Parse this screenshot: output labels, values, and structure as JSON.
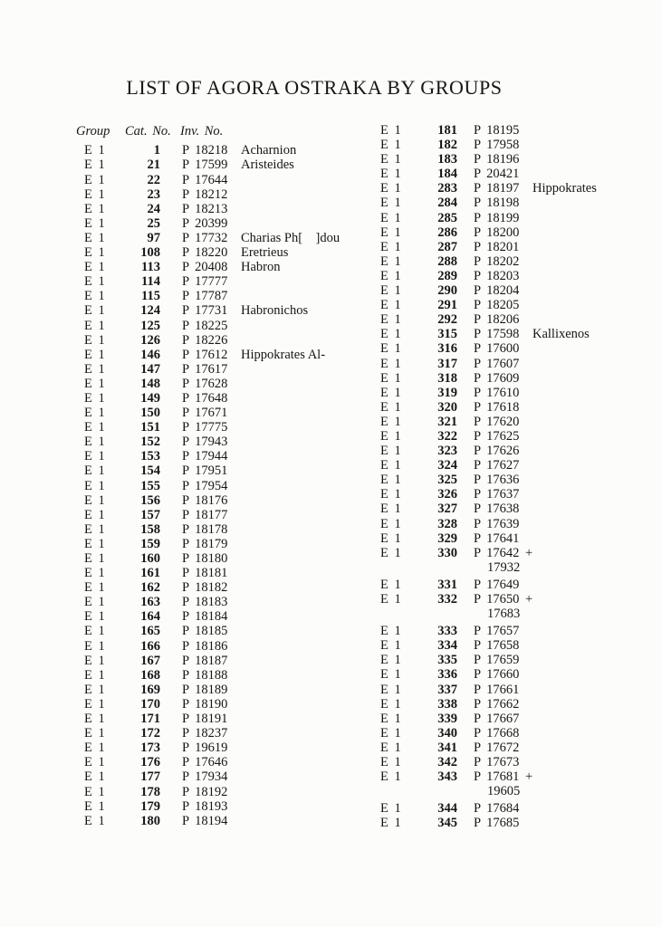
{
  "title": "LIST OF AGORA OSTRAKA BY GROUPS",
  "headers": {
    "group": "Group",
    "cat_no": "Cat. No.",
    "inv_no": "Inv. No."
  },
  "columns": {
    "left": [
      {
        "group": "E 1",
        "cat": "1",
        "inv": "P 18218",
        "name": "Acharnion"
      },
      {
        "group": "E 1",
        "cat": "21",
        "inv": "P 17599",
        "name": "Aristeides"
      },
      {
        "group": "E 1",
        "cat": "22",
        "inv": "P 17644"
      },
      {
        "group": "E 1",
        "cat": "23",
        "inv": "P 18212"
      },
      {
        "group": "E 1",
        "cat": "24",
        "inv": "P 18213"
      },
      {
        "group": "E 1",
        "cat": "25",
        "inv": "P 20399"
      },
      {
        "group": "E 1",
        "cat": "97",
        "inv": "P 17732",
        "name": "Charias Ph[    ]dou"
      },
      {
        "group": "E 1",
        "cat": "108",
        "inv": "P 18220",
        "name": "Eretrieus"
      },
      {
        "group": "E 1",
        "cat": "113",
        "inv": "P 20408",
        "name": "Habron"
      },
      {
        "group": "E 1",
        "cat": "114",
        "inv": "P 17777"
      },
      {
        "group": "E 1",
        "cat": "115",
        "inv": "P 17787"
      },
      {
        "group": "E 1",
        "cat": "124",
        "inv": "P 17731",
        "name": "Habronichos"
      },
      {
        "group": "E 1",
        "cat": "125",
        "inv": "P 18225"
      },
      {
        "group": "E 1",
        "cat": "126",
        "inv": "P 18226"
      },
      {
        "group": "E 1",
        "cat": "146",
        "inv": "P 17612",
        "name": "Hippokrates Al-"
      },
      {
        "group": "E 1",
        "cat": "147",
        "inv": "P 17617"
      },
      {
        "group": "E 1",
        "cat": "148",
        "inv": "P 17628"
      },
      {
        "group": "E 1",
        "cat": "149",
        "inv": "P 17648"
      },
      {
        "group": "E 1",
        "cat": "150",
        "inv": "P 17671"
      },
      {
        "group": "E 1",
        "cat": "151",
        "inv": "P 17775"
      },
      {
        "group": "E 1",
        "cat": "152",
        "inv": "P 17943"
      },
      {
        "group": "E 1",
        "cat": "153",
        "inv": "P 17944"
      },
      {
        "group": "E 1",
        "cat": "154",
        "inv": "P 17951"
      },
      {
        "group": "E 1",
        "cat": "155",
        "inv": "P 17954"
      },
      {
        "group": "E 1",
        "cat": "156",
        "inv": "P 18176"
      },
      {
        "group": "E 1",
        "cat": "157",
        "inv": "P 18177"
      },
      {
        "group": "E 1",
        "cat": "158",
        "inv": "P 18178"
      },
      {
        "group": "E 1",
        "cat": "159",
        "inv": "P 18179"
      },
      {
        "group": "E 1",
        "cat": "160",
        "inv": "P 18180"
      },
      {
        "group": "E 1",
        "cat": "161",
        "inv": "P 18181"
      },
      {
        "group": "E 1",
        "cat": "162",
        "inv": "P 18182"
      },
      {
        "group": "E 1",
        "cat": "163",
        "inv": "P 18183"
      },
      {
        "group": "E 1",
        "cat": "164",
        "inv": "P 18184"
      },
      {
        "group": "E 1",
        "cat": "165",
        "inv": "P 18185"
      },
      {
        "group": "E 1",
        "cat": "166",
        "inv": "P 18186"
      },
      {
        "group": "E 1",
        "cat": "167",
        "inv": "P 18187"
      },
      {
        "group": "E 1",
        "cat": "168",
        "inv": "P 18188"
      },
      {
        "group": "E 1",
        "cat": "169",
        "inv": "P 18189"
      },
      {
        "group": "E 1",
        "cat": "170",
        "inv": "P 18190"
      },
      {
        "group": "E 1",
        "cat": "171",
        "inv": "P 18191"
      },
      {
        "group": "E 1",
        "cat": "172",
        "inv": "P 18237"
      },
      {
        "group": "E 1",
        "cat": "173",
        "inv": "P 19619"
      },
      {
        "group": "E 1",
        "cat": "176",
        "inv": "P 17646"
      },
      {
        "group": "E 1",
        "cat": "177",
        "inv": "P 17934"
      },
      {
        "group": "E 1",
        "cat": "178",
        "inv": "P 18192"
      },
      {
        "group": "E 1",
        "cat": "179",
        "inv": "P 18193"
      },
      {
        "group": "E 1",
        "cat": "180",
        "inv": "P 18194"
      }
    ],
    "right": [
      {
        "group": "E 1",
        "cat": "181",
        "inv": "P 18195"
      },
      {
        "group": "E 1",
        "cat": "182",
        "inv": "P 17958"
      },
      {
        "group": "E 1",
        "cat": "183",
        "inv": "P 18196"
      },
      {
        "group": "E 1",
        "cat": "184",
        "inv": "P 20421"
      },
      {
        "group": "E 1",
        "cat": "283",
        "inv": "P 18197",
        "name": "Hippokrates"
      },
      {
        "group": "E 1",
        "cat": "284",
        "inv": "P 18198"
      },
      {
        "group": "E 1",
        "cat": "285",
        "inv": "P 18199"
      },
      {
        "group": "E 1",
        "cat": "286",
        "inv": "P 18200"
      },
      {
        "group": "E 1",
        "cat": "287",
        "inv": "P 18201"
      },
      {
        "group": "E 1",
        "cat": "288",
        "inv": "P 18202"
      },
      {
        "group": "E 1",
        "cat": "289",
        "inv": "P 18203"
      },
      {
        "group": "E 1",
        "cat": "290",
        "inv": "P 18204"
      },
      {
        "group": "E 1",
        "cat": "291",
        "inv": "P 18205"
      },
      {
        "group": "E 1",
        "cat": "292",
        "inv": "P 18206"
      },
      {
        "group": "E 1",
        "cat": "315",
        "inv": "P 17598",
        "name": "Kallixenos"
      },
      {
        "group": "E 1",
        "cat": "316",
        "inv": "P 17600"
      },
      {
        "group": "E 1",
        "cat": "317",
        "inv": "P 17607"
      },
      {
        "group": "E 1",
        "cat": "318",
        "inv": "P 17609"
      },
      {
        "group": "E 1",
        "cat": "319",
        "inv": "P 17610"
      },
      {
        "group": "E 1",
        "cat": "320",
        "inv": "P 17618"
      },
      {
        "group": "E 1",
        "cat": "321",
        "inv": "P 17620"
      },
      {
        "group": "E 1",
        "cat": "322",
        "inv": "P 17625"
      },
      {
        "group": "E 1",
        "cat": "323",
        "inv": "P 17626"
      },
      {
        "group": "E 1",
        "cat": "324",
        "inv": "P 17627"
      },
      {
        "group": "E 1",
        "cat": "325",
        "inv": "P 17636"
      },
      {
        "group": "E 1",
        "cat": "326",
        "inv": "P 17637"
      },
      {
        "group": "E 1",
        "cat": "327",
        "inv": "P 17638"
      },
      {
        "group": "E 1",
        "cat": "328",
        "inv": "P 17639"
      },
      {
        "group": "E 1",
        "cat": "329",
        "inv": "P 17641"
      },
      {
        "group": "E 1",
        "cat": "330",
        "inv": "P 17642 +",
        "inv_cont": "17932"
      },
      {
        "group": "E 1",
        "cat": "331",
        "inv": "P 17649",
        "gap_before": true
      },
      {
        "group": "E 1",
        "cat": "332",
        "inv": "P 17650 +",
        "inv_cont": "17683"
      },
      {
        "group": "E 1",
        "cat": "333",
        "inv": "P 17657",
        "gap_before": true
      },
      {
        "group": "E 1",
        "cat": "334",
        "inv": "P 17658"
      },
      {
        "group": "E 1",
        "cat": "335",
        "inv": "P 17659"
      },
      {
        "group": "E 1",
        "cat": "336",
        "inv": "P 17660"
      },
      {
        "group": "E 1",
        "cat": "337",
        "inv": "P 17661"
      },
      {
        "group": "E 1",
        "cat": "338",
        "inv": "P 17662"
      },
      {
        "group": "E 1",
        "cat": "339",
        "inv": "P 17667"
      },
      {
        "group": "E 1",
        "cat": "340",
        "inv": "P 17668"
      },
      {
        "group": "E 1",
        "cat": "341",
        "inv": "P 17672"
      },
      {
        "group": "E 1",
        "cat": "342",
        "inv": "P 17673"
      },
      {
        "group": "E 1",
        "cat": "343",
        "inv": "P 17681 +",
        "inv_cont": "19605"
      },
      {
        "group": "E 1",
        "cat": "344",
        "inv": "P 17684",
        "gap_before": true
      },
      {
        "group": "E 1",
        "cat": "345",
        "inv": "P 17685"
      }
    ]
  }
}
